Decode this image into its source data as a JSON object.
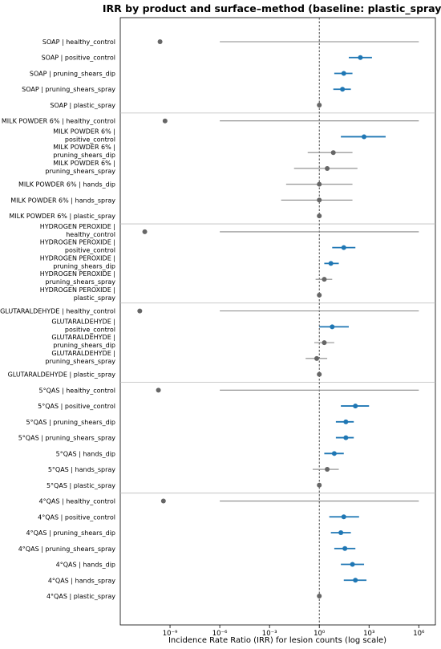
{
  "chart_data": {
    "type": "forest",
    "title": "IRR by product and surface–method (baseline: plastic_spray)",
    "xlabel": "Incidence Rate Ratio (IRR) for lesion counts (log scale)",
    "ylabel": "",
    "xscale": "log",
    "xlim": [
      1e-12,
      10000000.0
    ],
    "xticks": [
      {
        "value": 1e-09,
        "label": "10⁻⁹"
      },
      {
        "value": 1e-06,
        "label": "10⁻⁶"
      },
      {
        "value": 0.001,
        "label": "10⁻³"
      },
      {
        "value": 1,
        "label": "10⁰"
      },
      {
        "value": 1000.0,
        "label": "10³"
      },
      {
        "value": 1000000.0,
        "label": "10⁶"
      }
    ],
    "reference_line": 1,
    "grid": false,
    "colors": {
      "significant": "#1f77b4",
      "nonsignificant": "#666666",
      "ci_nonsig": "#888888",
      "reference": "#333333",
      "separator": "#bbbbbb"
    },
    "groups": [
      {
        "name": "SOAP",
        "rows": [
          {
            "label": [
              "SOAP | healthy_control"
            ],
            "irr": 2.5e-10,
            "lo": 1e-06,
            "hi": 1000000.0,
            "significant": false
          },
          {
            "label": [
              "SOAP | positive_control"
            ],
            "irr": 300,
            "lo": 60,
            "hi": 1500,
            "significant": true
          },
          {
            "label": [
              "SOAP | pruning_shears_dip"
            ],
            "irr": 30,
            "lo": 8,
            "hi": 100,
            "significant": true
          },
          {
            "label": [
              "SOAP | pruning_shears_spray"
            ],
            "irr": 25,
            "lo": 7,
            "hi": 80,
            "significant": true
          },
          {
            "label": [
              "SOAP | plastic_spray"
            ],
            "irr": 1,
            "lo": 1,
            "hi": 1,
            "significant": false
          }
        ]
      },
      {
        "name": "MILK POWDER 6%",
        "rows": [
          {
            "label": [
              "MILK POWDER 6% | healthy_control"
            ],
            "irr": 5e-10,
            "lo": 1e-06,
            "hi": 1000000.0,
            "significant": false
          },
          {
            "label": [
              "MILK POWDER 6% |",
              "positive_control"
            ],
            "irr": 500,
            "lo": 20,
            "hi": 10000,
            "significant": true
          },
          {
            "label": [
              "MILK POWDER 6% |",
              "pruning_shears_dip"
            ],
            "irr": 7,
            "lo": 0.2,
            "hi": 100,
            "significant": false
          },
          {
            "label": [
              "MILK POWDER 6% |",
              "pruning_shears_spray"
            ],
            "irr": 3,
            "lo": 0.03,
            "hi": 200,
            "significant": false
          },
          {
            "label": [
              "MILK POWDER 6% | hands_dip"
            ],
            "irr": 1,
            "lo": 0.01,
            "hi": 100,
            "significant": false
          },
          {
            "label": [
              "MILK POWDER 6% | hands_spray"
            ],
            "irr": 1,
            "lo": 0.005,
            "hi": 100,
            "significant": false
          },
          {
            "label": [
              "MILK POWDER 6% | plastic_spray"
            ],
            "irr": 1,
            "lo": 1,
            "hi": 1,
            "significant": false
          }
        ]
      },
      {
        "name": "HYDROGEN PEROXIDE",
        "rows": [
          {
            "label": [
              "HYDROGEN PEROXIDE |",
              "healthy_control"
            ],
            "irr": 3e-11,
            "lo": 1e-06,
            "hi": 1000000.0,
            "significant": false
          },
          {
            "label": [
              "HYDROGEN PEROXIDE |",
              "positive_control"
            ],
            "irr": 30,
            "lo": 6,
            "hi": 150,
            "significant": true
          },
          {
            "label": [
              "HYDROGEN PEROXIDE |",
              "pruning_shears_dip"
            ],
            "irr": 5,
            "lo": 2,
            "hi": 15,
            "significant": true
          },
          {
            "label": [
              "HYDROGEN PEROXIDE |",
              "pruning_shears_spray"
            ],
            "irr": 2,
            "lo": 0.6,
            "hi": 6,
            "significant": false
          },
          {
            "label": [
              "HYDROGEN PEROXIDE |",
              "plastic_spray"
            ],
            "irr": 1,
            "lo": 1,
            "hi": 1,
            "significant": false
          }
        ]
      },
      {
        "name": "GLUTARALDEHYDE",
        "rows": [
          {
            "label": [
              "GLUTARALDEHYDE | healthy_control"
            ],
            "irr": 1.5e-11,
            "lo": 1e-06,
            "hi": 1000000.0,
            "significant": false
          },
          {
            "label": [
              "GLUTARALDEHYDE |",
              "positive_control"
            ],
            "irr": 6,
            "lo": 1,
            "hi": 60,
            "significant": true
          },
          {
            "label": [
              "GLUTARALDEHYDE |",
              "pruning_shears_dip"
            ],
            "irr": 2,
            "lo": 0.5,
            "hi": 8,
            "significant": false
          },
          {
            "label": [
              "GLUTARALDEHYDE |",
              "pruning_shears_spray"
            ],
            "irr": 0.7,
            "lo": 0.15,
            "hi": 3,
            "significant": false
          },
          {
            "label": [
              "GLUTARALDEHYDE | plastic_spray"
            ],
            "irr": 1,
            "lo": 1,
            "hi": 1,
            "significant": false
          }
        ]
      },
      {
        "name": "5°QAS",
        "rows": [
          {
            "label": [
              "5°QAS | healthy_control"
            ],
            "irr": 2e-10,
            "lo": 1e-06,
            "hi": 1000000.0,
            "significant": false
          },
          {
            "label": [
              "5°QAS | positive_control"
            ],
            "irr": 150,
            "lo": 20,
            "hi": 1000,
            "significant": true
          },
          {
            "label": [
              "5°QAS | pruning_shears_dip"
            ],
            "irr": 40,
            "lo": 10,
            "hi": 120,
            "significant": true
          },
          {
            "label": [
              "5°QAS | pruning_shears_spray"
            ],
            "irr": 40,
            "lo": 10,
            "hi": 120,
            "significant": true
          },
          {
            "label": [
              "5°QAS | hands_dip"
            ],
            "irr": 8,
            "lo": 2,
            "hi": 30,
            "significant": true
          },
          {
            "label": [
              "5°QAS | hands_spray"
            ],
            "irr": 3,
            "lo": 0.4,
            "hi": 15,
            "significant": false
          },
          {
            "label": [
              "5°QAS | plastic_spray"
            ],
            "irr": 1,
            "lo": 1,
            "hi": 1,
            "significant": false
          }
        ]
      },
      {
        "name": "4°QAS",
        "rows": [
          {
            "label": [
              "4°QAS | healthy_control"
            ],
            "irr": 4e-10,
            "lo": 1e-06,
            "hi": 1000000.0,
            "significant": false
          },
          {
            "label": [
              "4°QAS | positive_control"
            ],
            "irr": 30,
            "lo": 4,
            "hi": 250,
            "significant": true
          },
          {
            "label": [
              "4°QAS | pruning_shears_dip"
            ],
            "irr": 20,
            "lo": 5,
            "hi": 80,
            "significant": true
          },
          {
            "label": [
              "4°QAS | pruning_shears_spray"
            ],
            "irr": 35,
            "lo": 8,
            "hi": 150,
            "significant": true
          },
          {
            "label": [
              "4°QAS | hands_dip"
            ],
            "irr": 100,
            "lo": 20,
            "hi": 500,
            "significant": true
          },
          {
            "label": [
              "4°QAS | hands_spray"
            ],
            "irr": 150,
            "lo": 30,
            "hi": 700,
            "significant": true
          },
          {
            "label": [
              "4°QAS | plastic_spray"
            ],
            "irr": 1,
            "lo": 1,
            "hi": 1,
            "significant": false
          }
        ]
      }
    ]
  }
}
